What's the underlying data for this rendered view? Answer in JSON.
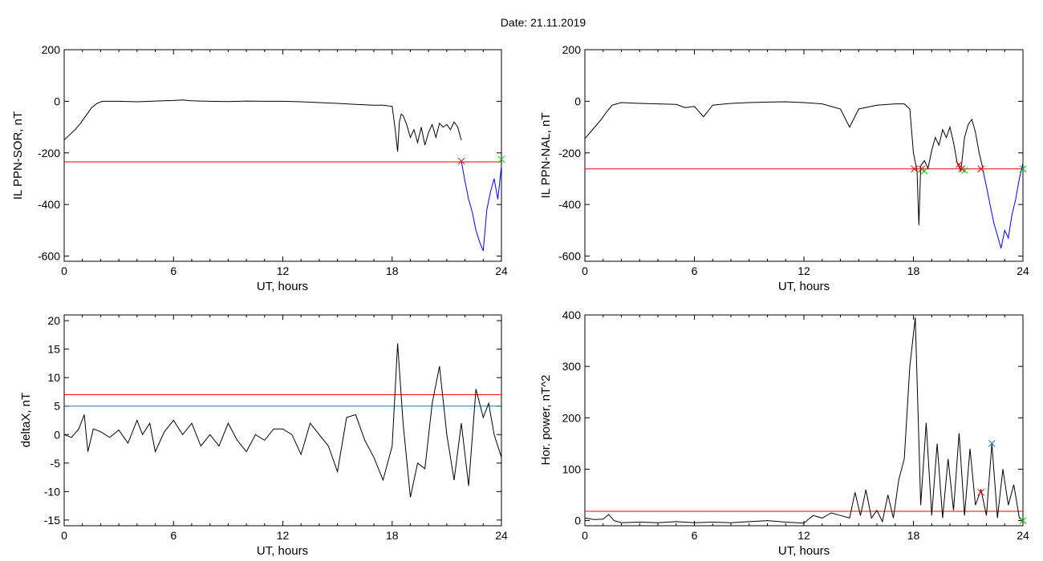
{
  "figure": {
    "title": "Date:  21.11.2019"
  },
  "chart_data": [
    {
      "id": "p1",
      "type": "line",
      "title": "",
      "xlabel": "UT, hours",
      "ylabel": "IL PPN-SOR, nT",
      "xlim": [
        0,
        24
      ],
      "ylim": [
        -620,
        200
      ],
      "xticks": [
        0,
        6,
        12,
        18,
        24
      ],
      "yticks": [
        -600,
        -400,
        -200,
        0,
        200
      ],
      "grid": false,
      "series": [
        {
          "color": "#000000",
          "x": [
            0,
            0.3,
            0.6,
            0.9,
            1.2,
            1.5,
            1.8,
            2.1,
            3,
            4,
            5,
            6,
            6.5,
            7,
            8,
            9,
            10,
            11,
            12,
            13,
            14,
            15,
            16,
            17,
            17.5,
            18,
            18.15,
            18.3,
            18.4,
            18.5,
            18.6,
            18.8,
            19,
            19.2,
            19.4,
            19.6,
            19.8,
            20,
            20.2,
            20.4,
            20.6,
            20.8,
            21,
            21.2,
            21.4,
            21.6,
            21.8
          ],
          "y": [
            -150,
            -130,
            -110,
            -85,
            -55,
            -25,
            -8,
            0,
            0,
            -2,
            1,
            3,
            5,
            2,
            0,
            -1,
            1,
            0,
            0,
            -2,
            -5,
            -8,
            -12,
            -15,
            -15,
            -20,
            -100,
            -195,
            -80,
            -50,
            -55,
            -90,
            -140,
            -110,
            -160,
            -100,
            -170,
            -120,
            -90,
            -140,
            -85,
            -100,
            -90,
            -110,
            -80,
            -100,
            -150
          ]
        },
        {
          "color": "#0000ff",
          "x": [
            21.8,
            22,
            22.2,
            22.4,
            22.6,
            22.8,
            23,
            23.2,
            23.4,
            23.6,
            23.8,
            24
          ],
          "y": [
            -232,
            -310,
            -380,
            -430,
            -500,
            -545,
            -580,
            -420,
            -350,
            -300,
            -380,
            -250
          ]
        }
      ],
      "hlines": [
        {
          "y": -235,
          "color": "#ff0000"
        }
      ],
      "markers": [
        {
          "x": 21.8,
          "y": -232,
          "color": "#ff0000",
          "symbol": "x"
        },
        {
          "x": 24,
          "y": -225,
          "color": "#00cc00",
          "symbol": "x"
        }
      ]
    },
    {
      "id": "p2",
      "type": "line",
      "title": "",
      "xlabel": "UT, hours",
      "ylabel": "IL PPN-NAL, nT",
      "xlim": [
        0,
        24
      ],
      "ylim": [
        -620,
        200
      ],
      "xticks": [
        0,
        6,
        12,
        18,
        24
      ],
      "yticks": [
        -600,
        -400,
        -200,
        0,
        200
      ],
      "grid": false,
      "series": [
        {
          "color": "#000000",
          "x": [
            0,
            0.3,
            0.6,
            0.9,
            1.2,
            1.5,
            2,
            3,
            4,
            5,
            5.5,
            6,
            6.5,
            7,
            8,
            9,
            10,
            11,
            12,
            13,
            14,
            14.5,
            15,
            16,
            17,
            17.5,
            17.8,
            18,
            18.2,
            18.3,
            18.4,
            18.6,
            18.8,
            19,
            19.2,
            19.4,
            19.6,
            19.8,
            20,
            20.2,
            20.4,
            20.6,
            20.8,
            21,
            21.2,
            21.4,
            21.6,
            21.8
          ],
          "y": [
            -145,
            -120,
            -95,
            -70,
            -40,
            -15,
            -5,
            -8,
            -10,
            -12,
            -25,
            -20,
            -60,
            -15,
            -8,
            -5,
            -3,
            -2,
            -5,
            -10,
            -30,
            -100,
            -30,
            -15,
            -10,
            -10,
            -30,
            -200,
            -270,
            -480,
            -250,
            -230,
            -260,
            -190,
            -140,
            -170,
            -110,
            -140,
            -100,
            -160,
            -240,
            -270,
            -140,
            -90,
            -70,
            -120,
            -200,
            -260
          ]
        },
        {
          "color": "#0000ff",
          "x": [
            21.8,
            22,
            22.2,
            22.4,
            22.6,
            22.8,
            23,
            23.2,
            23.4,
            23.6,
            23.8,
            24
          ],
          "y": [
            -265,
            -330,
            -400,
            -470,
            -520,
            -570,
            -500,
            -530,
            -440,
            -380,
            -300,
            -240
          ]
        }
      ],
      "hlines": [
        {
          "y": -262,
          "color": "#ff0000"
        }
      ],
      "markers": [
        {
          "x": 18.05,
          "y": -262,
          "color": "#ff0000",
          "symbol": "x"
        },
        {
          "x": 18.45,
          "y": -262,
          "color": "#ff0000",
          "symbol": "x"
        },
        {
          "x": 18.6,
          "y": -270,
          "color": "#00cc00",
          "symbol": "x"
        },
        {
          "x": 20.5,
          "y": -245,
          "color": "#ff0000",
          "symbol": "x"
        },
        {
          "x": 20.65,
          "y": -262,
          "color": "#ff0000",
          "symbol": "x"
        },
        {
          "x": 20.8,
          "y": -268,
          "color": "#00cc00",
          "symbol": "x"
        },
        {
          "x": 21.7,
          "y": -262,
          "color": "#ff0000",
          "symbol": "x"
        },
        {
          "x": 24,
          "y": -262,
          "color": "#00cc00",
          "symbol": "x"
        }
      ]
    },
    {
      "id": "p3",
      "type": "line",
      "title": "",
      "xlabel": "UT, hours",
      "ylabel": "deltaX, nT",
      "xlim": [
        0,
        24
      ],
      "ylim": [
        -16,
        21
      ],
      "xticks": [
        0,
        6,
        12,
        18,
        24
      ],
      "yticks": [
        -15,
        -10,
        -5,
        0,
        5,
        10,
        15,
        20
      ],
      "grid": false,
      "series": [
        {
          "color": "#000000",
          "x": [
            0,
            0.4,
            0.8,
            1.1,
            1.3,
            1.6,
            2,
            2.5,
            3,
            3.5,
            4,
            4.3,
            4.7,
            5,
            5.5,
            6,
            6.5,
            7,
            7.5,
            8,
            8.5,
            9,
            9.5,
            10,
            10.5,
            11,
            11.5,
            12,
            12.5,
            13,
            13.5,
            14,
            14.5,
            15,
            15.5,
            16,
            16.5,
            17,
            17.5,
            18,
            18.3,
            18.6,
            19,
            19.4,
            19.8,
            20.2,
            20.6,
            21,
            21.4,
            21.8,
            22.2,
            22.6,
            23,
            23.3,
            23.6,
            24
          ],
          "y": [
            0,
            -0.5,
            1,
            3.5,
            -3,
            1,
            0.5,
            -0.5,
            0.8,
            -1.5,
            2.5,
            0,
            2,
            -3,
            0.5,
            2.5,
            0,
            2,
            -2,
            0,
            -2,
            2,
            -1,
            -3,
            0,
            -1,
            1,
            1,
            0,
            -3.5,
            2,
            0,
            -2,
            -6.5,
            3,
            3.5,
            -1,
            -4,
            -8,
            -2,
            16,
            2,
            -11,
            -5,
            -6,
            5.5,
            12,
            0,
            -8,
            2,
            -9,
            8,
            3,
            5.5,
            0,
            -4
          ]
        }
      ],
      "hlines": [
        {
          "y": 7,
          "color": "#ff0000"
        },
        {
          "y": 5,
          "color": "#1f77b4"
        }
      ],
      "markers": []
    },
    {
      "id": "p4",
      "type": "line",
      "title": "",
      "xlabel": "UT, hours",
      "ylabel": "Hor. power, nT^2",
      "xlim": [
        0,
        24
      ],
      "ylim": [
        -10,
        400
      ],
      "xticks": [
        0,
        6,
        12,
        18,
        24
      ],
      "yticks": [
        0,
        100,
        200,
        300,
        400
      ],
      "grid": false,
      "series": [
        {
          "color": "#000000",
          "x": [
            0,
            0.5,
            1,
            1.3,
            1.6,
            2,
            3,
            4,
            5,
            6,
            7,
            8,
            9,
            10,
            11,
            12,
            12.5,
            13,
            13.5,
            14,
            14.5,
            14.8,
            15.1,
            15.4,
            15.7,
            16,
            16.3,
            16.6,
            16.9,
            17.2,
            17.5,
            17.8,
            18.1,
            18.4,
            18.7,
            19,
            19.3,
            19.6,
            19.9,
            20.2,
            20.5,
            20.8,
            21.1,
            21.4,
            21.7,
            22,
            22.3,
            22.6,
            22.9,
            23.2,
            23.5,
            23.8,
            24
          ],
          "y": [
            5,
            2,
            3,
            12,
            0,
            -4,
            -3,
            -4,
            -2,
            -4,
            -3,
            -4,
            -2,
            0,
            -3,
            -5,
            10,
            5,
            15,
            10,
            5,
            55,
            10,
            60,
            5,
            20,
            -2,
            50,
            5,
            80,
            120,
            300,
            395,
            30,
            190,
            10,
            150,
            5,
            120,
            20,
            170,
            10,
            140,
            30,
            60,
            10,
            150,
            5,
            100,
            30,
            70,
            5,
            0
          ]
        }
      ],
      "hlines": [
        {
          "y": 18,
          "color": "#ff0000"
        }
      ],
      "markers": [
        {
          "x": 21.7,
          "y": 55,
          "color": "#ff0000",
          "symbol": "x"
        },
        {
          "x": 22.3,
          "y": 150,
          "color": "#1f77b4",
          "symbol": "x"
        },
        {
          "x": 24,
          "y": 0,
          "color": "#00cc00",
          "symbol": "x"
        }
      ]
    }
  ]
}
